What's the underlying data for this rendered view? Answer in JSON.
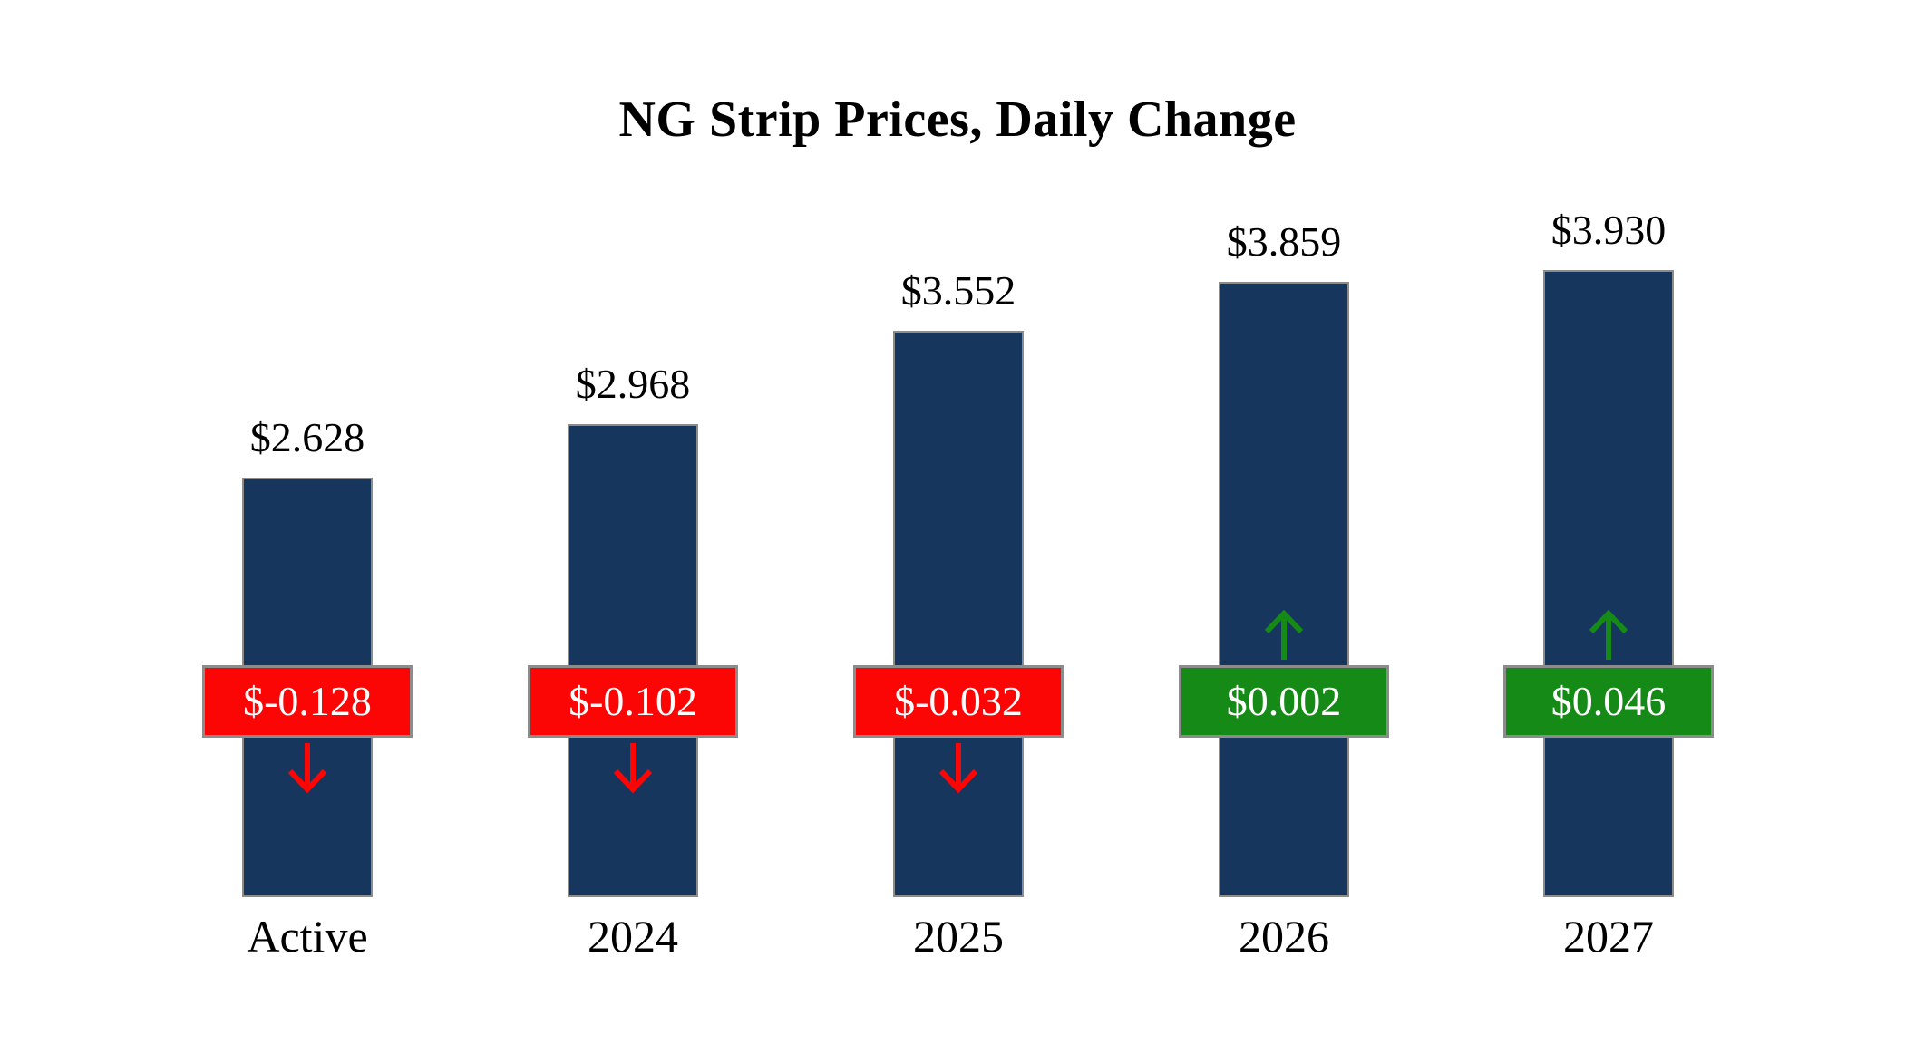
{
  "chart_data": {
    "type": "bar",
    "title": "NG Strip Prices, Daily Change",
    "categories": [
      "Active",
      "2024",
      "2025",
      "2026",
      "2027"
    ],
    "series": [
      {
        "name": "strip_price",
        "values": [
          2.628,
          2.968,
          3.552,
          3.859,
          3.93
        ]
      },
      {
        "name": "daily_change",
        "values": [
          -0.128,
          -0.102,
          -0.032,
          0.002,
          0.046
        ]
      }
    ],
    "bar_value_labels": [
      "$2.628",
      "$2.968",
      "$3.552",
      "$3.859",
      "$3.930"
    ],
    "change_labels": [
      "$-0.128",
      "$-0.102",
      "$-0.032",
      "$0.002",
      "$0.046"
    ],
    "change_directions": [
      "down",
      "down",
      "down",
      "up",
      "up"
    ],
    "colors": {
      "background": "#FFFFFF",
      "bar": "#17365D",
      "bar_border": "#8C8C8C",
      "negative": "#FB0505",
      "positive": "#168A16",
      "badge_border": "#8C8C8C",
      "badge_text": "#FFFFFF",
      "text": "#000000"
    },
    "xlabel": "",
    "ylabel": "",
    "ylim": [
      0,
      4.4
    ],
    "grid": false,
    "legend": false
  }
}
